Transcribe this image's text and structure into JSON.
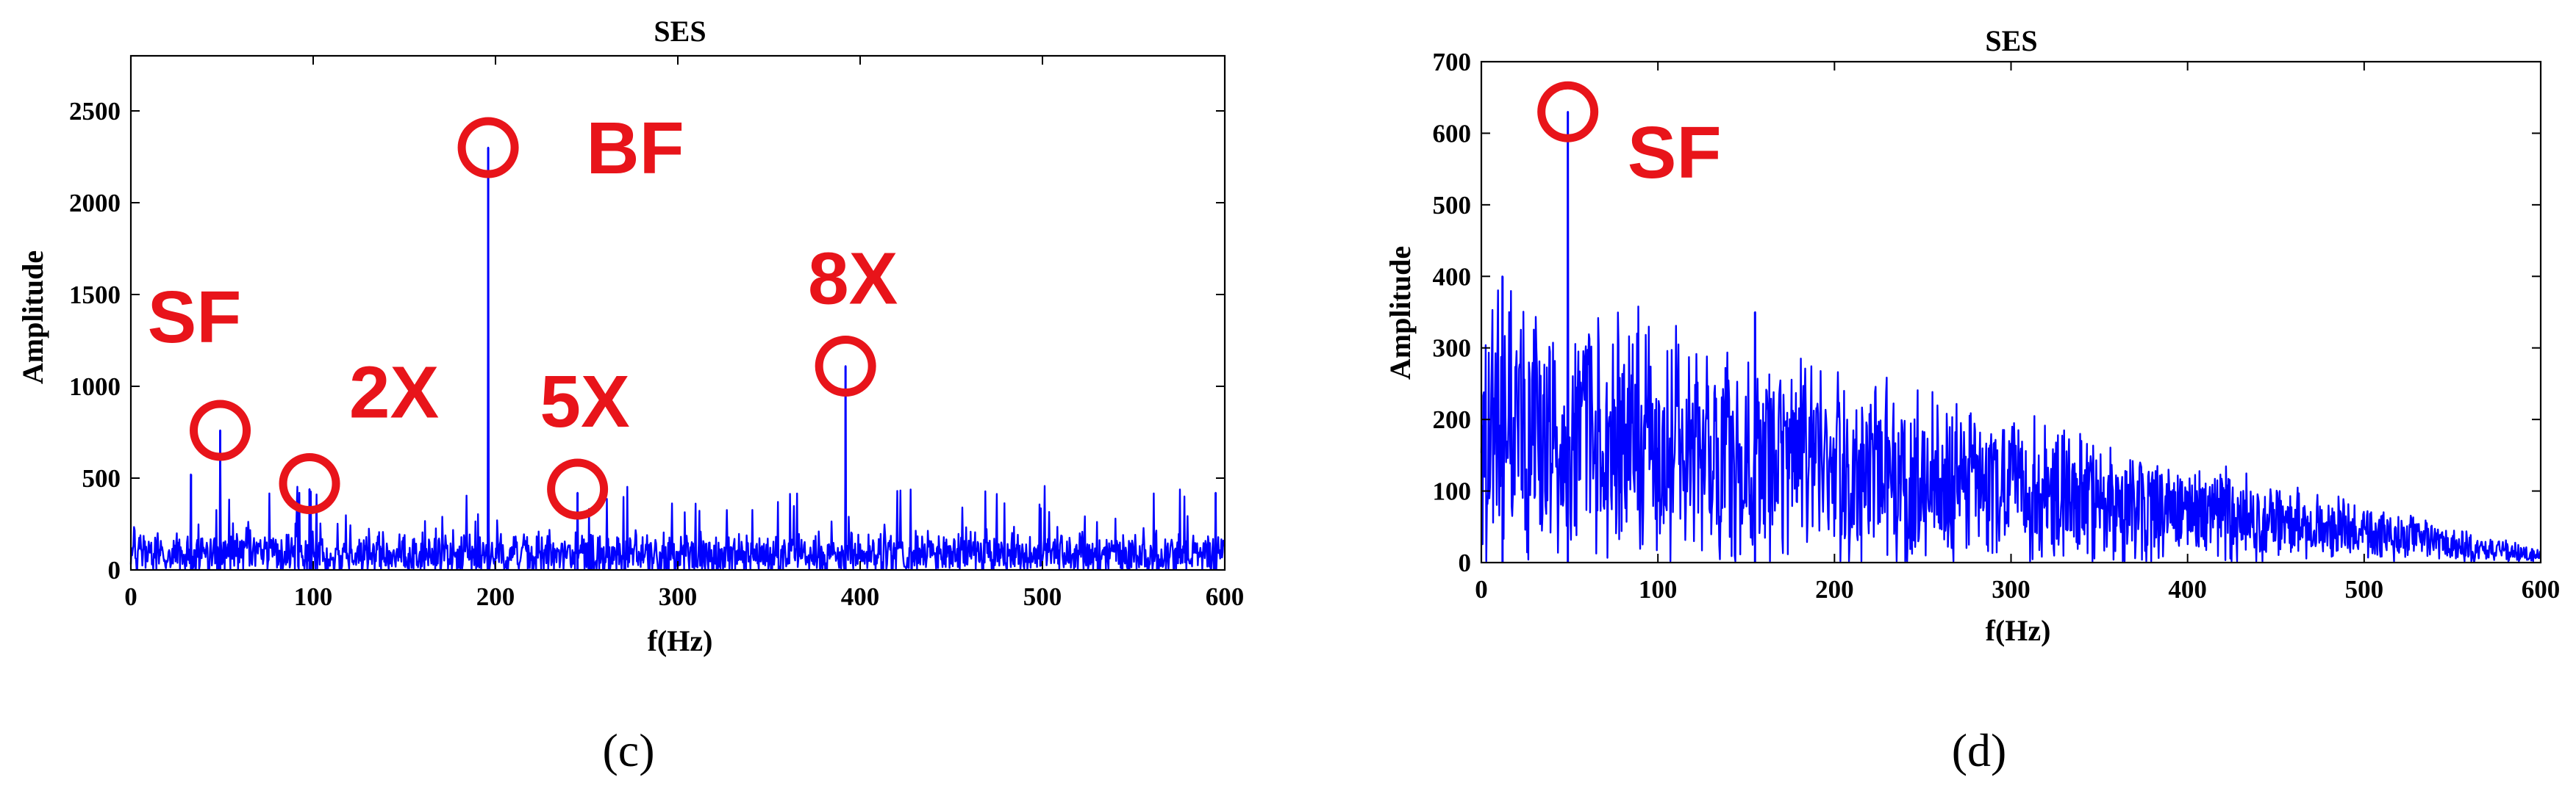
{
  "colors": {
    "series": "#0000ff",
    "annotation": "#e8141a",
    "axis": "#000000",
    "background": "#ffffff"
  },
  "chart_data": [
    {
      "type": "line",
      "panel_label": "(c)",
      "title": "SES",
      "xlabel": "f(Hz)",
      "ylabel": "Amplitude",
      "xlim": [
        0,
        600
      ],
      "ylim": [
        0,
        2800
      ],
      "xticks": [
        0,
        100,
        200,
        300,
        400,
        500,
        600
      ],
      "yticks": [
        0,
        500,
        1000,
        1500,
        2000,
        2500
      ],
      "grid": false,
      "series": [
        {
          "noise_profile": {
            "range_hz": [
              0,
              600
            ],
            "baseline": 80,
            "spread": 200,
            "typical_max": 350
          },
          "peaks": [
            {
              "x": 33,
              "y": 520
            },
            {
              "x": 49,
              "y": 760
            },
            {
              "x": 98,
              "y": 440
            },
            {
              "x": 196,
              "y": 2300
            },
            {
              "x": 245,
              "y": 420
            },
            {
              "x": 392,
              "y": 1110
            },
            {
              "x": 595,
              "y": 420
            }
          ]
        }
      ],
      "annotations": [
        {
          "label": "SF",
          "x": 49,
          "y": 760,
          "label_pos": "above-left"
        },
        {
          "label": "2X",
          "x": 98,
          "y": 470,
          "label_pos": "above-right"
        },
        {
          "label": "BF",
          "x": 196,
          "y": 2300,
          "label_pos": "right"
        },
        {
          "label": "5X",
          "x": 245,
          "y": 440,
          "label_pos": "above"
        },
        {
          "label": "8X",
          "x": 392,
          "y": 1110,
          "label_pos": "above"
        }
      ]
    },
    {
      "type": "line",
      "panel_label": "(d)",
      "title": "SES",
      "xlabel": "f(Hz)",
      "ylabel": "Amplitude",
      "xlim": [
        0,
        600
      ],
      "ylim": [
        0,
        700
      ],
      "xticks": [
        0,
        100,
        200,
        300,
        400,
        500,
        600
      ],
      "yticks": [
        0,
        100,
        200,
        300,
        400,
        500,
        600,
        700
      ],
      "grid": false,
      "series": [
        {
          "noise_profile": {
            "range_hz": [
              0,
              600
            ],
            "start_mean": 190,
            "end_mean": 10,
            "start_spread": 330,
            "end_spread": 15
          },
          "peaks": [
            {
              "x": 49,
              "y": 630
            },
            {
              "x": 12,
              "y": 400
            },
            {
              "x": 155,
              "y": 350
            }
          ]
        }
      ],
      "annotations": [
        {
          "label": "SF",
          "x": 49,
          "y": 630,
          "label_pos": "below-right"
        }
      ]
    }
  ]
}
